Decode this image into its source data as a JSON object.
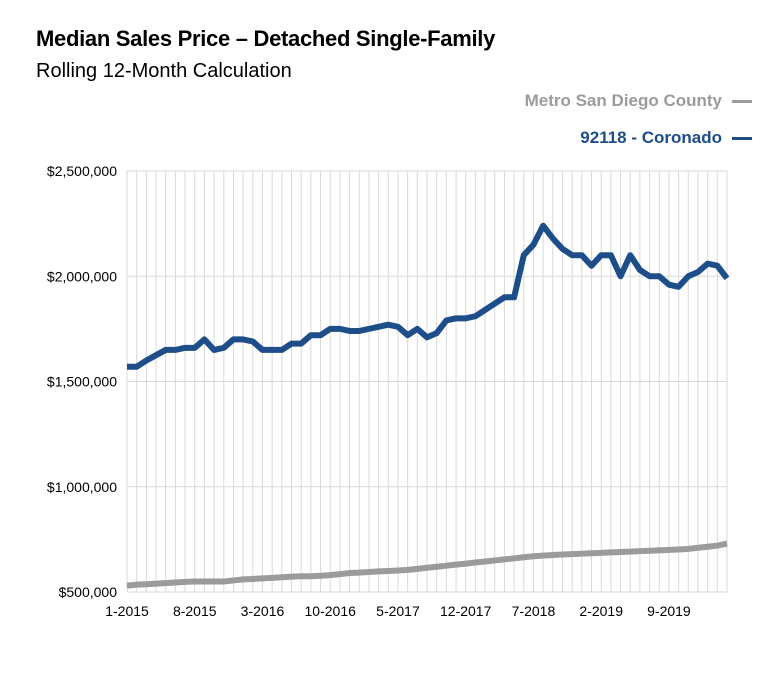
{
  "header": {
    "title": "Median Sales Price – Detached Single-Family",
    "subtitle": "Rolling 12-Month Calculation"
  },
  "legend": {
    "metro_label": "Metro San Diego County",
    "coronado_label": "92118 - Coronado"
  },
  "colors": {
    "metro": "#9b9b9b",
    "coronado": "#1d4e89",
    "grid": "#d9d9d9"
  },
  "chart_data": {
    "type": "line",
    "title": "Median Sales Price – Detached Single-Family",
    "subtitle": "Rolling 12-Month Calculation",
    "xlabel": "",
    "ylabel": "",
    "x": [
      "1-2015",
      "2-2015",
      "3-2015",
      "4-2015",
      "5-2015",
      "6-2015",
      "7-2015",
      "8-2015",
      "9-2015",
      "10-2015",
      "11-2015",
      "12-2015",
      "1-2016",
      "2-2016",
      "3-2016",
      "4-2016",
      "5-2016",
      "6-2016",
      "7-2016",
      "8-2016",
      "9-2016",
      "10-2016",
      "11-2016",
      "12-2016",
      "1-2017",
      "2-2017",
      "3-2017",
      "4-2017",
      "5-2017",
      "6-2017",
      "7-2017",
      "8-2017",
      "9-2017",
      "10-2017",
      "11-2017",
      "12-2017",
      "1-2018",
      "2-2018",
      "3-2018",
      "4-2018",
      "5-2018",
      "6-2018",
      "7-2018",
      "8-2018",
      "9-2018",
      "10-2018",
      "11-2018",
      "12-2018",
      "1-2019",
      "2-2019",
      "3-2019",
      "4-2019",
      "5-2019",
      "6-2019",
      "7-2019",
      "8-2019",
      "9-2019",
      "10-2019",
      "11-2019",
      "12-2019",
      "1-2020",
      "2-2020",
      "3-2020"
    ],
    "x_tick_labels": [
      "1-2015",
      "8-2015",
      "3-2016",
      "10-2016",
      "5-2017",
      "12-2017",
      "7-2018",
      "2-2019",
      "9-2019"
    ],
    "y_tick_labels": [
      "$500,000",
      "$1,000,000",
      "$1,500,000",
      "$2,000,000",
      "$2,500,000"
    ],
    "ylim": [
      500000,
      2500000
    ],
    "grid": true,
    "legend_position": "top-right",
    "series": [
      {
        "name": "Metro San Diego County",
        "color": "#9b9b9b",
        "values": [
          530000,
          535000,
          537000,
          540000,
          542000,
          545000,
          548000,
          550000,
          550000,
          550000,
          550000,
          555000,
          560000,
          562000,
          565000,
          567000,
          570000,
          573000,
          575000,
          575000,
          577000,
          580000,
          585000,
          590000,
          592000,
          595000,
          598000,
          600000,
          602000,
          605000,
          610000,
          615000,
          620000,
          625000,
          630000,
          635000,
          640000,
          645000,
          650000,
          655000,
          660000,
          665000,
          670000,
          673000,
          676000,
          678000,
          680000,
          682000,
          684000,
          686000,
          688000,
          690000,
          692000,
          694000,
          696000,
          698000,
          700000,
          702000,
          705000,
          710000,
          715000,
          720000,
          730000
        ]
      },
      {
        "name": "92118 - Coronado",
        "color": "#1d4e89",
        "values": [
          1570000,
          1570000,
          1600000,
          1625000,
          1650000,
          1650000,
          1660000,
          1660000,
          1700000,
          1650000,
          1660000,
          1700000,
          1700000,
          1690000,
          1650000,
          1650000,
          1650000,
          1680000,
          1680000,
          1720000,
          1720000,
          1750000,
          1750000,
          1740000,
          1740000,
          1750000,
          1760000,
          1770000,
          1760000,
          1720000,
          1750000,
          1710000,
          1730000,
          1790000,
          1800000,
          1800000,
          1810000,
          1840000,
          1870000,
          1900000,
          1900000,
          2100000,
          2150000,
          2240000,
          2180000,
          2130000,
          2100000,
          2100000,
          2050000,
          2100000,
          2100000,
          2000000,
          2100000,
          2030000,
          2000000,
          2000000,
          1960000,
          1950000,
          2000000,
          2020000,
          2060000,
          2050000,
          1990000
        ]
      }
    ]
  }
}
